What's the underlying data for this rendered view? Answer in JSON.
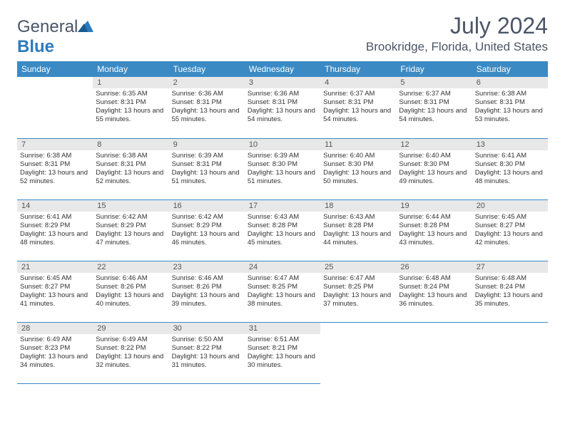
{
  "logo": {
    "word1": "General",
    "word2": "Blue"
  },
  "title": "July 2024",
  "location": "Brookridge, Florida, United States",
  "colors": {
    "header_bg": "#3b8ac4",
    "header_text": "#ffffff",
    "daynum_bg": "#e8e8e8",
    "border": "#3b8ac4",
    "title_color": "#4a5568",
    "logo_gray": "#4a5568",
    "logo_blue": "#2b7bbf"
  },
  "weekdays": [
    "Sunday",
    "Monday",
    "Tuesday",
    "Wednesday",
    "Thursday",
    "Friday",
    "Saturday"
  ],
  "weeks": [
    [
      null,
      {
        "day": "1",
        "sunrise": "6:35 AM",
        "sunset": "8:31 PM",
        "daylight": "13 hours and 55 minutes."
      },
      {
        "day": "2",
        "sunrise": "6:36 AM",
        "sunset": "8:31 PM",
        "daylight": "13 hours and 55 minutes."
      },
      {
        "day": "3",
        "sunrise": "6:36 AM",
        "sunset": "8:31 PM",
        "daylight": "13 hours and 54 minutes."
      },
      {
        "day": "4",
        "sunrise": "6:37 AM",
        "sunset": "8:31 PM",
        "daylight": "13 hours and 54 minutes."
      },
      {
        "day": "5",
        "sunrise": "6:37 AM",
        "sunset": "8:31 PM",
        "daylight": "13 hours and 54 minutes."
      },
      {
        "day": "6",
        "sunrise": "6:38 AM",
        "sunset": "8:31 PM",
        "daylight": "13 hours and 53 minutes."
      }
    ],
    [
      {
        "day": "7",
        "sunrise": "6:38 AM",
        "sunset": "8:31 PM",
        "daylight": "13 hours and 52 minutes."
      },
      {
        "day": "8",
        "sunrise": "6:38 AM",
        "sunset": "8:31 PM",
        "daylight": "13 hours and 52 minutes."
      },
      {
        "day": "9",
        "sunrise": "6:39 AM",
        "sunset": "8:31 PM",
        "daylight": "13 hours and 51 minutes."
      },
      {
        "day": "10",
        "sunrise": "6:39 AM",
        "sunset": "8:30 PM",
        "daylight": "13 hours and 51 minutes."
      },
      {
        "day": "11",
        "sunrise": "6:40 AM",
        "sunset": "8:30 PM",
        "daylight": "13 hours and 50 minutes."
      },
      {
        "day": "12",
        "sunrise": "6:40 AM",
        "sunset": "8:30 PM",
        "daylight": "13 hours and 49 minutes."
      },
      {
        "day": "13",
        "sunrise": "6:41 AM",
        "sunset": "8:30 PM",
        "daylight": "13 hours and 48 minutes."
      }
    ],
    [
      {
        "day": "14",
        "sunrise": "6:41 AM",
        "sunset": "8:29 PM",
        "daylight": "13 hours and 48 minutes."
      },
      {
        "day": "15",
        "sunrise": "6:42 AM",
        "sunset": "8:29 PM",
        "daylight": "13 hours and 47 minutes."
      },
      {
        "day": "16",
        "sunrise": "6:42 AM",
        "sunset": "8:29 PM",
        "daylight": "13 hours and 46 minutes."
      },
      {
        "day": "17",
        "sunrise": "6:43 AM",
        "sunset": "8:28 PM",
        "daylight": "13 hours and 45 minutes."
      },
      {
        "day": "18",
        "sunrise": "6:43 AM",
        "sunset": "8:28 PM",
        "daylight": "13 hours and 44 minutes."
      },
      {
        "day": "19",
        "sunrise": "6:44 AM",
        "sunset": "8:28 PM",
        "daylight": "13 hours and 43 minutes."
      },
      {
        "day": "20",
        "sunrise": "6:45 AM",
        "sunset": "8:27 PM",
        "daylight": "13 hours and 42 minutes."
      }
    ],
    [
      {
        "day": "21",
        "sunrise": "6:45 AM",
        "sunset": "8:27 PM",
        "daylight": "13 hours and 41 minutes."
      },
      {
        "day": "22",
        "sunrise": "6:46 AM",
        "sunset": "8:26 PM",
        "daylight": "13 hours and 40 minutes."
      },
      {
        "day": "23",
        "sunrise": "6:46 AM",
        "sunset": "8:26 PM",
        "daylight": "13 hours and 39 minutes."
      },
      {
        "day": "24",
        "sunrise": "6:47 AM",
        "sunset": "8:25 PM",
        "daylight": "13 hours and 38 minutes."
      },
      {
        "day": "25",
        "sunrise": "6:47 AM",
        "sunset": "8:25 PM",
        "daylight": "13 hours and 37 minutes."
      },
      {
        "day": "26",
        "sunrise": "6:48 AM",
        "sunset": "8:24 PM",
        "daylight": "13 hours and 36 minutes."
      },
      {
        "day": "27",
        "sunrise": "6:48 AM",
        "sunset": "8:24 PM",
        "daylight": "13 hours and 35 minutes."
      }
    ],
    [
      {
        "day": "28",
        "sunrise": "6:49 AM",
        "sunset": "8:23 PM",
        "daylight": "13 hours and 34 minutes."
      },
      {
        "day": "29",
        "sunrise": "6:49 AM",
        "sunset": "8:22 PM",
        "daylight": "13 hours and 32 minutes."
      },
      {
        "day": "30",
        "sunrise": "6:50 AM",
        "sunset": "8:22 PM",
        "daylight": "13 hours and 31 minutes."
      },
      {
        "day": "31",
        "sunrise": "6:51 AM",
        "sunset": "8:21 PM",
        "daylight": "13 hours and 30 minutes."
      },
      null,
      null,
      null
    ]
  ]
}
